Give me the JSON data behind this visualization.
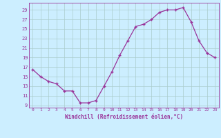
{
  "x": [
    0,
    1,
    2,
    3,
    4,
    5,
    6,
    7,
    8,
    9,
    10,
    11,
    12,
    13,
    14,
    15,
    16,
    17,
    18,
    19,
    20,
    21,
    22,
    23
  ],
  "y": [
    16.5,
    15.0,
    14.0,
    13.5,
    12.0,
    12.0,
    9.5,
    9.5,
    10.0,
    13.0,
    16.0,
    19.5,
    22.5,
    25.5,
    26.0,
    27.0,
    28.5,
    29.0,
    29.0,
    29.5,
    26.5,
    22.5,
    20.0,
    19.0
  ],
  "line_color": "#993399",
  "marker": "+",
  "marker_size": 3,
  "bg_color": "#cceeff",
  "grid_color": "#aacccc",
  "tick_color": "#993399",
  "label_color": "#993399",
  "xlabel": "Windchill (Refroidissement éolien,°C)",
  "xlim": [
    -0.5,
    23.5
  ],
  "ylim": [
    8.5,
    30.5
  ],
  "yticks": [
    9,
    11,
    13,
    15,
    17,
    19,
    21,
    23,
    25,
    27,
    29
  ],
  "xticks": [
    0,
    1,
    2,
    3,
    4,
    5,
    6,
    7,
    8,
    9,
    10,
    11,
    12,
    13,
    14,
    15,
    16,
    17,
    18,
    19,
    20,
    21,
    22,
    23
  ]
}
